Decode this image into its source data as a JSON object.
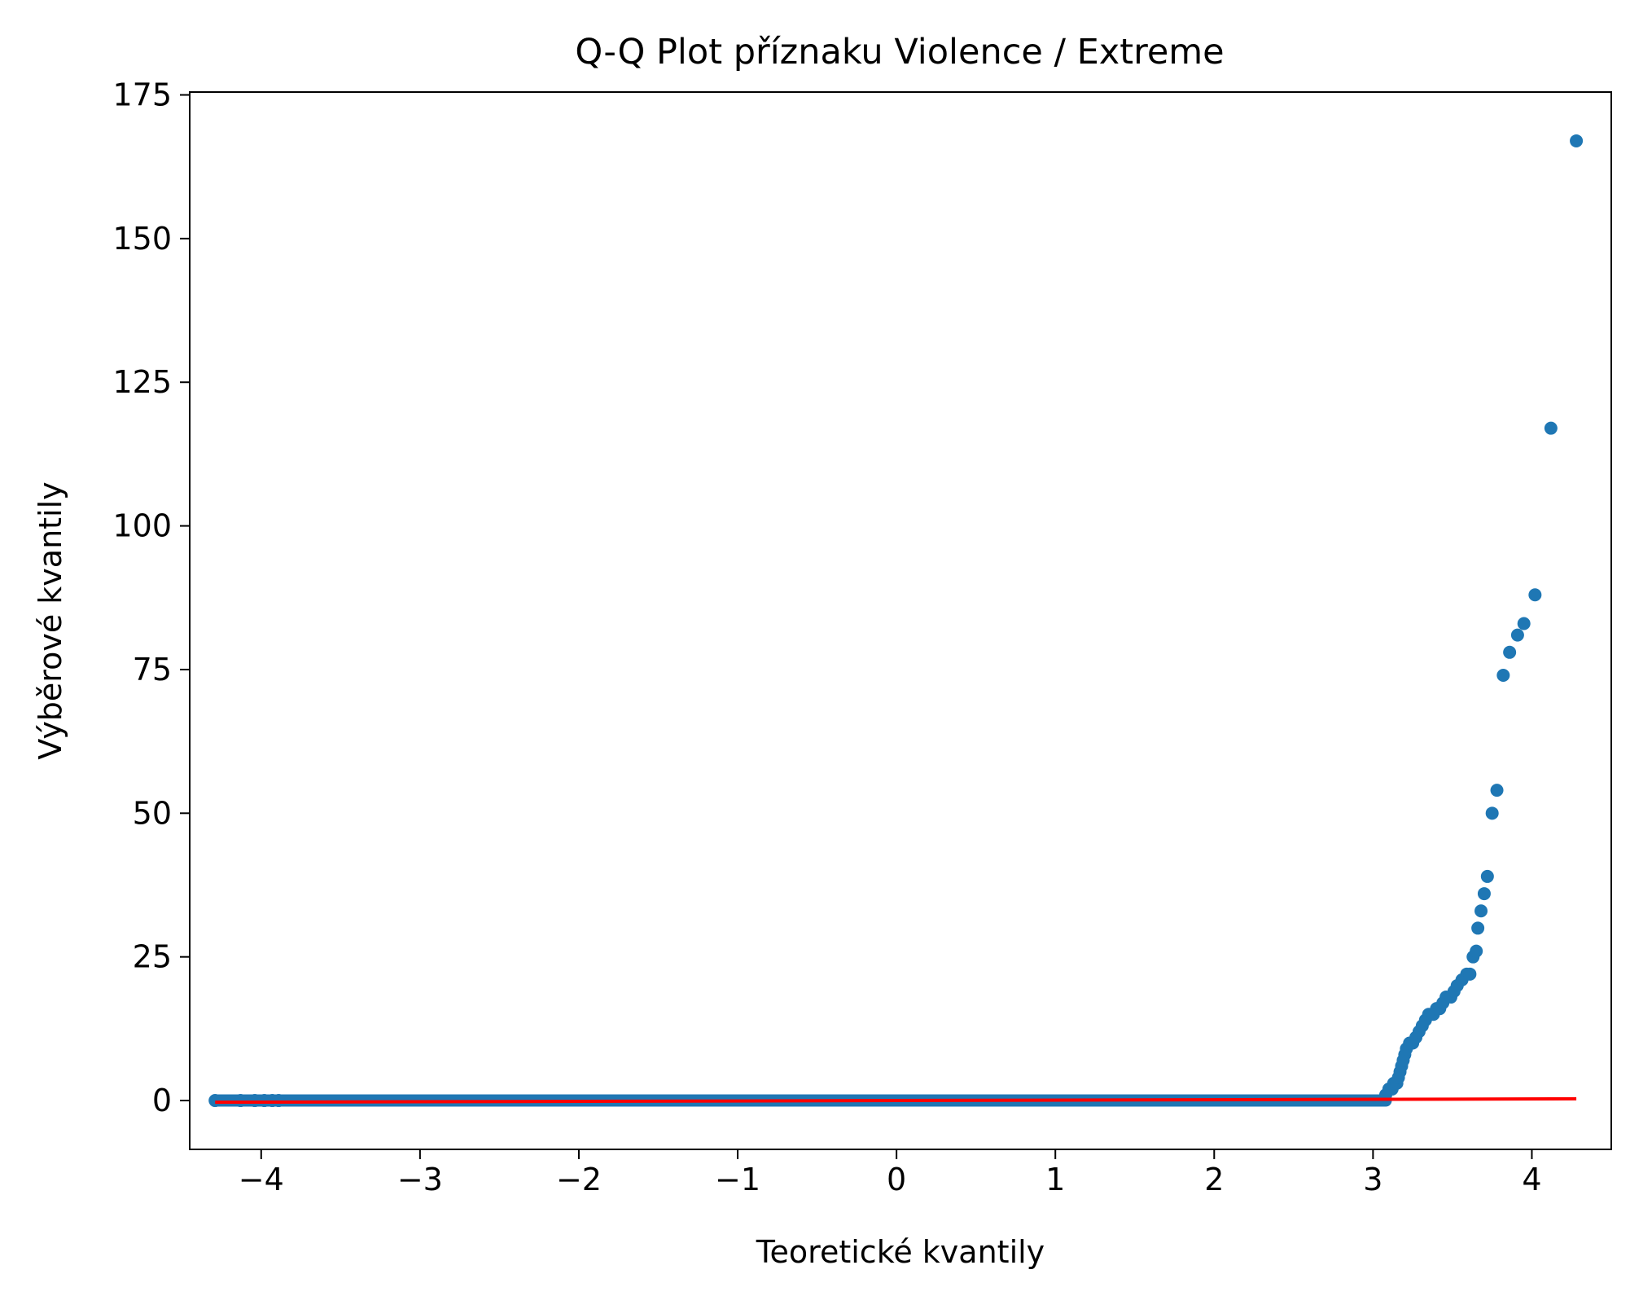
{
  "chart_data": {
    "type": "scatter",
    "title": "Q-Q Plot příznaku Violence / Extreme",
    "xlabel": "Teoretické kvantily",
    "ylabel": "Výběrové kvantily",
    "xlim": [
      -4.45,
      4.5
    ],
    "ylim": [
      -8.5,
      175.5
    ],
    "xticks": [
      -4,
      -3,
      -2,
      -1,
      0,
      1,
      2,
      3,
      4
    ],
    "xtick_labels": [
      "−4",
      "−3",
      "−2",
      "−1",
      "0",
      "1",
      "2",
      "3",
      "4"
    ],
    "yticks": [
      0,
      25,
      50,
      75,
      100,
      125,
      150,
      175
    ],
    "ytick_labels": [
      "0",
      "25",
      "50",
      "75",
      "100",
      "125",
      "150",
      "175"
    ],
    "grid": false,
    "colors": {
      "points": "#1f77b4",
      "fit_line": "#ff0000"
    },
    "series": [
      {
        "kind": "points",
        "zero_run": {
          "x_start": -4.29,
          "x_end": 3.08,
          "y": 0
        },
        "points": [
          [
            -4.29,
            0
          ],
          [
            -4.13,
            0
          ],
          [
            -4.04,
            0
          ],
          [
            -3.98,
            0
          ],
          [
            -3.93,
            0
          ],
          [
            -3.89,
            0
          ],
          [
            3.08,
            1
          ],
          [
            3.1,
            2
          ],
          [
            3.12,
            2
          ],
          [
            3.13,
            3
          ],
          [
            3.15,
            3
          ],
          [
            3.16,
            4
          ],
          [
            3.17,
            5
          ],
          [
            3.18,
            6
          ],
          [
            3.19,
            7
          ],
          [
            3.2,
            8
          ],
          [
            3.21,
            9
          ],
          [
            3.23,
            10
          ],
          [
            3.25,
            10
          ],
          [
            3.27,
            11
          ],
          [
            3.29,
            12
          ],
          [
            3.31,
            13
          ],
          [
            3.33,
            14
          ],
          [
            3.35,
            15
          ],
          [
            3.38,
            15
          ],
          [
            3.4,
            16
          ],
          [
            3.42,
            16
          ],
          [
            3.44,
            17
          ],
          [
            3.46,
            18
          ],
          [
            3.49,
            18
          ],
          [
            3.51,
            19
          ],
          [
            3.53,
            20
          ],
          [
            3.56,
            21
          ],
          [
            3.59,
            22
          ],
          [
            3.61,
            22
          ],
          [
            3.63,
            25
          ],
          [
            3.65,
            26
          ],
          [
            3.66,
            30
          ],
          [
            3.68,
            33
          ],
          [
            3.7,
            36
          ],
          [
            3.72,
            39
          ],
          [
            3.75,
            50
          ],
          [
            3.78,
            54
          ],
          [
            3.82,
            74
          ],
          [
            3.86,
            78
          ],
          [
            3.91,
            81
          ],
          [
            3.95,
            83
          ],
          [
            4.02,
            88
          ],
          [
            4.12,
            117
          ],
          [
            4.28,
            167
          ]
        ]
      },
      {
        "kind": "fit_line",
        "start": [
          -4.29,
          -0.3
        ],
        "end": [
          4.28,
          0.3
        ]
      }
    ]
  }
}
